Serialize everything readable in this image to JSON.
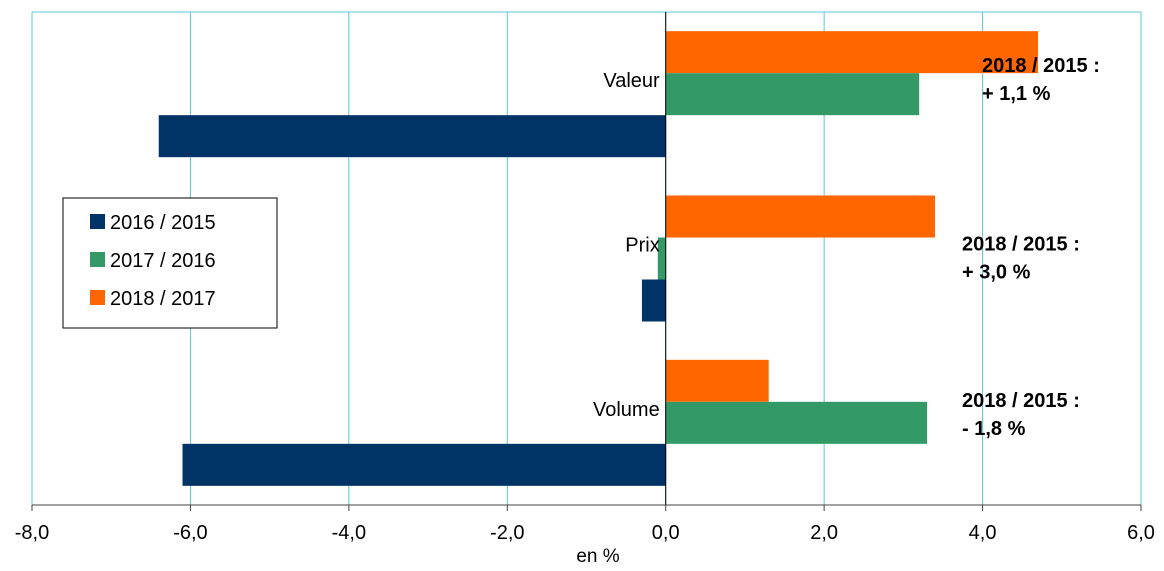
{
  "chart_data": {
    "type": "bar",
    "orientation": "horizontal",
    "categories": [
      "Valeur",
      "Prix",
      "Volume"
    ],
    "series": [
      {
        "name": "2016 / 2015",
        "color": "#003366",
        "values": [
          -6.4,
          -0.3,
          -6.1
        ]
      },
      {
        "name": "2017 / 2016",
        "color": "#339966",
        "values": [
          3.2,
          -0.1,
          3.3
        ]
      },
      {
        "name": "2018 / 2017",
        "color": "#FF6600",
        "values": [
          4.7,
          3.4,
          1.3
        ]
      }
    ],
    "xlabel": "en %",
    "xlim": [
      -8,
      6
    ],
    "xticks": [
      -8,
      -6,
      -4,
      -2,
      0,
      2,
      4,
      6
    ],
    "xtick_labels": [
      "-8,0",
      "-6,0",
      "-4,0",
      "-2,0",
      "0,0",
      "2,0",
      "4,0",
      "6,0"
    ],
    "grid": "vertical",
    "legend_position": "left",
    "annotations": [
      {
        "category": "Valeur",
        "lines": [
          "2018 / 2015 :",
          "+ 1,1 %"
        ]
      },
      {
        "category": "Prix",
        "lines": [
          "2018 / 2015 :",
          "+ 3,0 %"
        ]
      },
      {
        "category": "Volume",
        "lines": [
          "2018 / 2015 :",
          "- 1,8 %"
        ]
      }
    ]
  }
}
